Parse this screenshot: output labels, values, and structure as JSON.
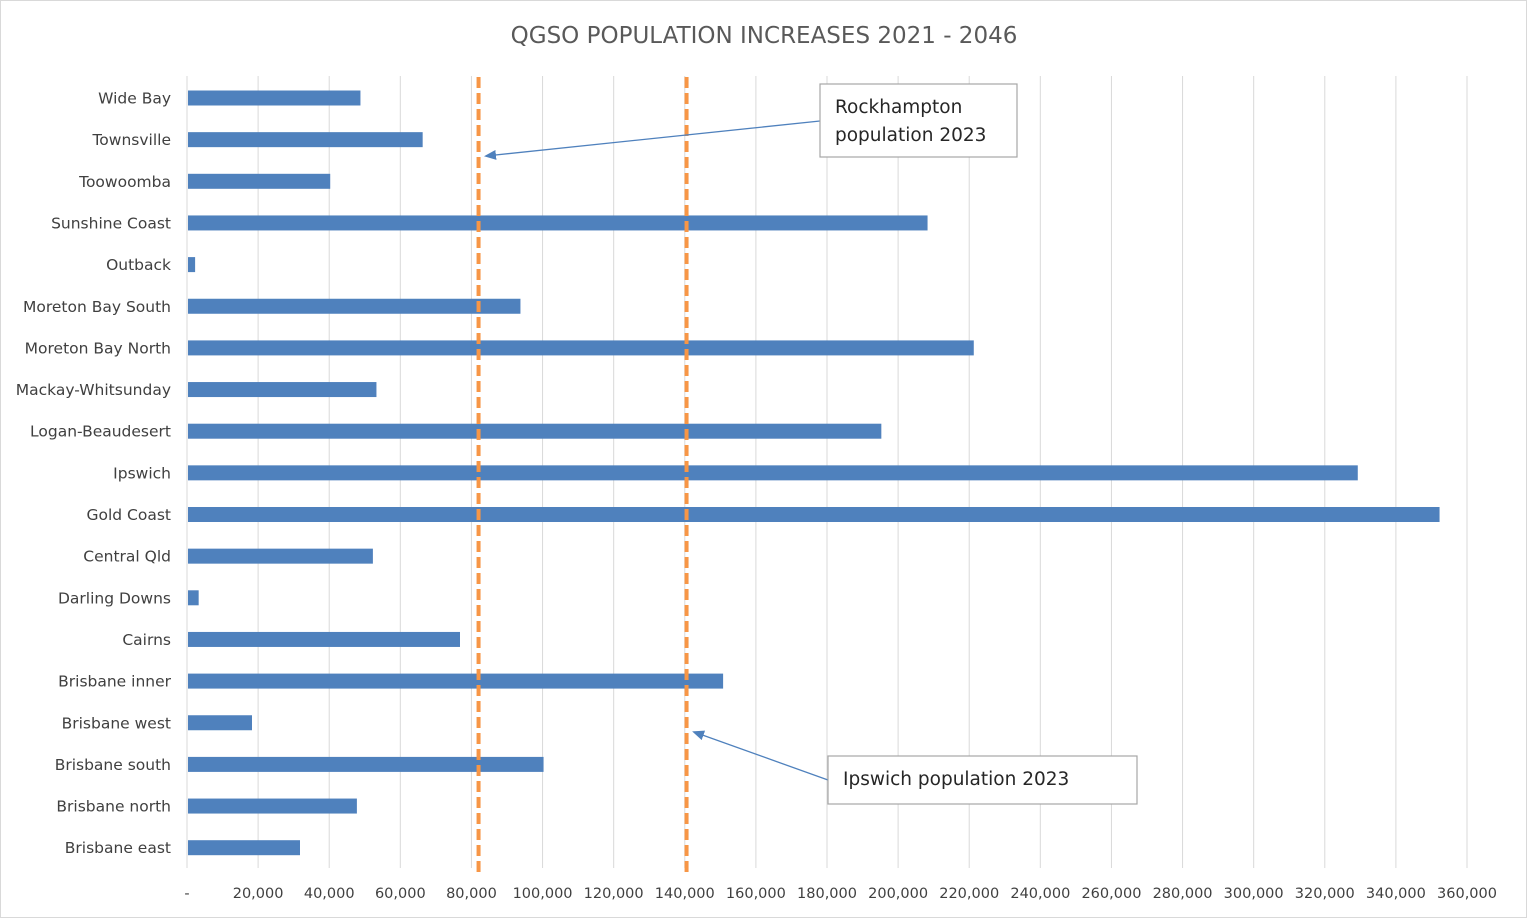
{
  "chart_data": {
    "type": "bar",
    "orientation": "horizontal",
    "title": "QGSO POPULATION INCREASES 2021 - 2046",
    "xlabel": "",
    "ylabel": "",
    "xlim": [
      0,
      360000
    ],
    "x_ticks": [
      0,
      20000,
      40000,
      60000,
      80000,
      100000,
      120000,
      140000,
      160000,
      180000,
      200000,
      220000,
      240000,
      260000,
      280000,
      300000,
      320000,
      340000,
      360000
    ],
    "x_tick_labels": [
      "-",
      "20,000",
      "40,000",
      "60,000",
      "80,000",
      "100,000",
      "120,000",
      "140,000",
      "160,000",
      "180,000",
      "200,000",
      "220,000",
      "240,000",
      "260,000",
      "280,000",
      "300,000",
      "320,000",
      "340,000",
      "360,000"
    ],
    "grid": "vertical",
    "categories": [
      "Wide Bay",
      "Townsville",
      "Toowoomba",
      "Sunshine Coast",
      "Outback",
      "Moreton Bay South",
      "Moreton Bay North",
      "Mackay-Whitsunday",
      "Logan-Beaudesert",
      "Ipswich",
      "Gold Coast",
      "Central Qld",
      "Darling Downs",
      "Cairns",
      "Brisbane inner",
      "Brisbane west",
      "Brisbane south",
      "Brisbane north",
      "Brisbane east"
    ],
    "values": [
      48500,
      66000,
      40000,
      208000,
      2000,
      93500,
      221000,
      53000,
      195000,
      329000,
      352000,
      52000,
      3000,
      76500,
      150500,
      18000,
      100000,
      47500,
      31500
    ],
    "bar_color": "#4f81bd",
    "reference_lines": [
      {
        "name": "Rockhampton population 2023",
        "value": 82000,
        "color": "#f79646",
        "style": "dashed"
      },
      {
        "name": "Ipswich population 2023",
        "value": 140500,
        "color": "#f79646",
        "style": "dashed"
      }
    ],
    "annotations": [
      {
        "lines": [
          "Rockhampton",
          "population 2023"
        ],
        "points_to": "Rockhampton population 2023"
      },
      {
        "lines": [
          "Ipswich population 2023"
        ],
        "points_to": "Ipswich population 2023"
      }
    ]
  }
}
